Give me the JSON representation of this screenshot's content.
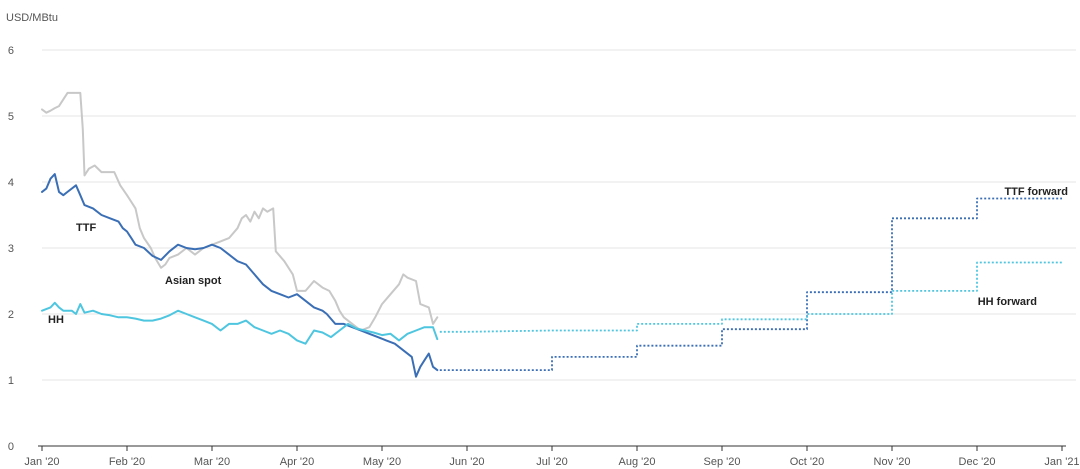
{
  "chart_data": {
    "type": "line",
    "unit_label": "USD/MBtu",
    "ylim": [
      0,
      6
    ],
    "y_ticks": [
      "0",
      "1",
      "2",
      "3",
      "4",
      "5",
      "6"
    ],
    "x_ticks": [
      "Jan '20",
      "Feb '20",
      "Mar '20",
      "Apr '20",
      "May '20",
      "Jun '20",
      "Jul '20",
      "Aug '20",
      "Sep '20",
      "Oct '20",
      "Nov '20",
      "Dec '20",
      "Jan '21"
    ],
    "grid": "horizontal",
    "colors": {
      "asian_spot": "#c8c8c8",
      "ttf": "#3b6fb5",
      "hh": "#4fc6e0",
      "ttf_forward": "#3b6fb5",
      "hh_forward": "#4fc6e0"
    },
    "series": [
      {
        "name": "Asian spot",
        "style": "solid",
        "points": [
          [
            0.0,
            5.1
          ],
          [
            0.05,
            5.05
          ],
          [
            0.1,
            5.08
          ],
          [
            0.15,
            5.12
          ],
          [
            0.2,
            5.15
          ],
          [
            0.3,
            5.35
          ],
          [
            0.45,
            5.35
          ],
          [
            0.48,
            4.8
          ],
          [
            0.5,
            4.1
          ],
          [
            0.55,
            4.2
          ],
          [
            0.62,
            4.25
          ],
          [
            0.7,
            4.15
          ],
          [
            0.85,
            4.15
          ],
          [
            0.92,
            3.95
          ],
          [
            1.0,
            3.8
          ],
          [
            1.1,
            3.6
          ],
          [
            1.15,
            3.3
          ],
          [
            1.2,
            3.15
          ],
          [
            1.28,
            3.0
          ],
          [
            1.33,
            2.85
          ],
          [
            1.4,
            2.7
          ],
          [
            1.45,
            2.75
          ],
          [
            1.5,
            2.85
          ],
          [
            1.6,
            2.9
          ],
          [
            1.7,
            3.0
          ],
          [
            1.8,
            2.9
          ],
          [
            1.9,
            3.0
          ],
          [
            2.0,
            3.05
          ],
          [
            2.1,
            3.1
          ],
          [
            2.2,
            3.15
          ],
          [
            2.3,
            3.3
          ],
          [
            2.35,
            3.45
          ],
          [
            2.4,
            3.5
          ],
          [
            2.45,
            3.4
          ],
          [
            2.5,
            3.55
          ],
          [
            2.55,
            3.45
          ],
          [
            2.6,
            3.6
          ],
          [
            2.65,
            3.55
          ],
          [
            2.72,
            3.6
          ],
          [
            2.75,
            2.95
          ],
          [
            2.85,
            2.8
          ],
          [
            2.95,
            2.6
          ],
          [
            3.0,
            2.35
          ],
          [
            3.1,
            2.35
          ],
          [
            3.2,
            2.5
          ],
          [
            3.3,
            2.4
          ],
          [
            3.38,
            2.35
          ],
          [
            3.45,
            2.2
          ],
          [
            3.5,
            2.05
          ],
          [
            3.55,
            1.95
          ],
          [
            3.65,
            1.85
          ],
          [
            3.75,
            1.75
          ],
          [
            3.85,
            1.8
          ],
          [
            3.92,
            1.95
          ],
          [
            4.0,
            2.15
          ],
          [
            4.1,
            2.3
          ],
          [
            4.2,
            2.45
          ],
          [
            4.25,
            2.6
          ],
          [
            4.3,
            2.55
          ],
          [
            4.4,
            2.5
          ],
          [
            4.45,
            2.15
          ],
          [
            4.55,
            2.1
          ],
          [
            4.6,
            1.85
          ],
          [
            4.65,
            1.95
          ]
        ]
      },
      {
        "name": "TTF",
        "style": "solid",
        "points": [
          [
            0.0,
            3.85
          ],
          [
            0.05,
            3.9
          ],
          [
            0.1,
            4.05
          ],
          [
            0.15,
            4.12
          ],
          [
            0.2,
            3.85
          ],
          [
            0.25,
            3.8
          ],
          [
            0.3,
            3.85
          ],
          [
            0.4,
            3.95
          ],
          [
            0.45,
            3.8
          ],
          [
            0.5,
            3.65
          ],
          [
            0.6,
            3.6
          ],
          [
            0.7,
            3.5
          ],
          [
            0.8,
            3.45
          ],
          [
            0.9,
            3.4
          ],
          [
            0.95,
            3.3
          ],
          [
            1.0,
            3.25
          ],
          [
            1.05,
            3.15
          ],
          [
            1.1,
            3.05
          ],
          [
            1.2,
            3.0
          ],
          [
            1.3,
            2.88
          ],
          [
            1.4,
            2.82
          ],
          [
            1.5,
            2.95
          ],
          [
            1.6,
            3.05
          ],
          [
            1.7,
            3.0
          ],
          [
            1.8,
            2.98
          ],
          [
            1.9,
            3.0
          ],
          [
            2.0,
            3.05
          ],
          [
            2.1,
            3.0
          ],
          [
            2.2,
            2.9
          ],
          [
            2.3,
            2.8
          ],
          [
            2.4,
            2.75
          ],
          [
            2.5,
            2.6
          ],
          [
            2.6,
            2.45
          ],
          [
            2.7,
            2.35
          ],
          [
            2.8,
            2.3
          ],
          [
            2.9,
            2.25
          ],
          [
            3.0,
            2.3
          ],
          [
            3.1,
            2.2
          ],
          [
            3.2,
            2.1
          ],
          [
            3.3,
            2.05
          ],
          [
            3.35,
            2.0
          ],
          [
            3.45,
            1.85
          ],
          [
            3.55,
            1.85
          ],
          [
            3.65,
            1.8
          ],
          [
            3.75,
            1.75
          ],
          [
            3.85,
            1.7
          ],
          [
            3.95,
            1.65
          ],
          [
            4.05,
            1.6
          ],
          [
            4.15,
            1.55
          ],
          [
            4.25,
            1.45
          ],
          [
            4.35,
            1.35
          ],
          [
            4.4,
            1.05
          ],
          [
            4.45,
            1.2
          ],
          [
            4.5,
            1.3
          ],
          [
            4.55,
            1.4
          ],
          [
            4.6,
            1.2
          ],
          [
            4.65,
            1.15
          ]
        ]
      },
      {
        "name": "HH",
        "style": "solid",
        "points": [
          [
            0.0,
            2.05
          ],
          [
            0.1,
            2.1
          ],
          [
            0.15,
            2.17
          ],
          [
            0.2,
            2.1
          ],
          [
            0.25,
            2.05
          ],
          [
            0.3,
            2.05
          ],
          [
            0.35,
            2.05
          ],
          [
            0.4,
            2.0
          ],
          [
            0.45,
            2.15
          ],
          [
            0.5,
            2.02
          ],
          [
            0.6,
            2.05
          ],
          [
            0.7,
            2.0
          ],
          [
            0.8,
            1.98
          ],
          [
            0.9,
            1.95
          ],
          [
            1.0,
            1.95
          ],
          [
            1.1,
            1.93
          ],
          [
            1.2,
            1.9
          ],
          [
            1.3,
            1.9
          ],
          [
            1.4,
            1.93
          ],
          [
            1.5,
            1.98
          ],
          [
            1.6,
            2.05
          ],
          [
            1.7,
            2.0
          ],
          [
            1.8,
            1.95
          ],
          [
            1.9,
            1.9
          ],
          [
            2.0,
            1.85
          ],
          [
            2.1,
            1.75
          ],
          [
            2.2,
            1.85
          ],
          [
            2.3,
            1.85
          ],
          [
            2.4,
            1.9
          ],
          [
            2.5,
            1.8
          ],
          [
            2.6,
            1.75
          ],
          [
            2.7,
            1.7
          ],
          [
            2.8,
            1.75
          ],
          [
            2.9,
            1.7
          ],
          [
            3.0,
            1.6
          ],
          [
            3.1,
            1.55
          ],
          [
            3.2,
            1.75
          ],
          [
            3.3,
            1.72
          ],
          [
            3.4,
            1.65
          ],
          [
            3.5,
            1.75
          ],
          [
            3.6,
            1.85
          ],
          [
            3.7,
            1.78
          ],
          [
            3.8,
            1.75
          ],
          [
            3.9,
            1.72
          ],
          [
            4.0,
            1.68
          ],
          [
            4.1,
            1.7
          ],
          [
            4.2,
            1.6
          ],
          [
            4.3,
            1.7
          ],
          [
            4.4,
            1.75
          ],
          [
            4.5,
            1.8
          ],
          [
            4.6,
            1.8
          ],
          [
            4.65,
            1.62
          ]
        ]
      },
      {
        "name": "TTF forward",
        "style": "dotted",
        "points": [
          [
            4.68,
            1.15
          ],
          [
            6.0,
            1.15
          ],
          [
            6.0,
            1.35
          ],
          [
            7.0,
            1.35
          ],
          [
            7.0,
            1.52
          ],
          [
            8.0,
            1.52
          ],
          [
            8.0,
            1.77
          ],
          [
            9.0,
            1.77
          ],
          [
            9.0,
            2.33
          ],
          [
            10.0,
            2.33
          ],
          [
            10.0,
            3.45
          ],
          [
            11.0,
            3.45
          ],
          [
            11.0,
            3.75
          ],
          [
            12.0,
            3.75
          ]
        ]
      },
      {
        "name": "HH forward",
        "style": "dotted",
        "points": [
          [
            4.68,
            1.73
          ],
          [
            5.0,
            1.73
          ],
          [
            6.0,
            1.75
          ],
          [
            7.0,
            1.75
          ],
          [
            7.0,
            1.85
          ],
          [
            8.0,
            1.85
          ],
          [
            8.0,
            1.92
          ],
          [
            9.0,
            1.92
          ],
          [
            9.0,
            2.0
          ],
          [
            10.0,
            2.0
          ],
          [
            10.0,
            2.35
          ],
          [
            11.0,
            2.35
          ],
          [
            11.0,
            2.78
          ],
          [
            12.0,
            2.78
          ]
        ]
      }
    ]
  }
}
